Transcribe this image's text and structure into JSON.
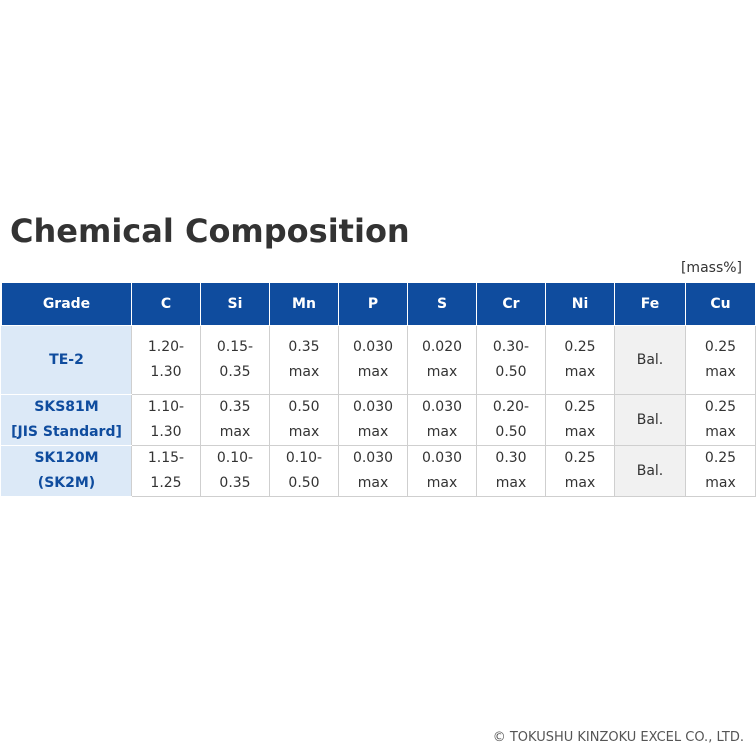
{
  "title": "Chemical Composition",
  "unit": "[mass%]",
  "table": {
    "headers": [
      "Grade",
      "C",
      "Si",
      "Mn",
      "P",
      "S",
      "Cr",
      "Ni",
      "Fe",
      "Cu"
    ],
    "rows": [
      {
        "grade": [
          "TE-2"
        ],
        "C": [
          "1.20-",
          "1.30"
        ],
        "Si": [
          "0.15-",
          "0.35"
        ],
        "Mn": [
          "0.35",
          "max"
        ],
        "P": [
          "0.030",
          "max"
        ],
        "S": [
          "0.020",
          "max"
        ],
        "Cr": [
          "0.30-",
          "0.50"
        ],
        "Ni": [
          "0.25",
          "max"
        ],
        "Fe": [
          "Bal."
        ],
        "Cu": [
          "0.25",
          "max"
        ]
      },
      {
        "grade": [
          "SKS81M",
          "[JIS Standard]"
        ],
        "C": [
          "1.10-",
          "1.30"
        ],
        "Si": [
          "0.35",
          "max"
        ],
        "Mn": [
          "0.50",
          "max"
        ],
        "P": [
          "0.030",
          "max"
        ],
        "S": [
          "0.030",
          "max"
        ],
        "Cr": [
          "0.20-",
          "0.50"
        ],
        "Ni": [
          "0.25",
          "max"
        ],
        "Fe": [
          "Bal."
        ],
        "Cu": [
          "0.25",
          "max"
        ]
      },
      {
        "grade": [
          "SK120M",
          "(SK2M)"
        ],
        "C": [
          "1.15-",
          "1.25"
        ],
        "Si": [
          "0.10-",
          "0.35"
        ],
        "Mn": [
          "0.10-",
          "0.50"
        ],
        "P": [
          "0.030",
          "max"
        ],
        "S": [
          "0.030",
          "max"
        ],
        "Cr": [
          "0.30",
          "max"
        ],
        "Ni": [
          "0.25",
          "max"
        ],
        "Fe": [
          "Bal."
        ],
        "Cu": [
          "0.25",
          "max"
        ]
      }
    ]
  },
  "copyright": "© TOKUSHU KINZOKU EXCEL CO., LTD."
}
